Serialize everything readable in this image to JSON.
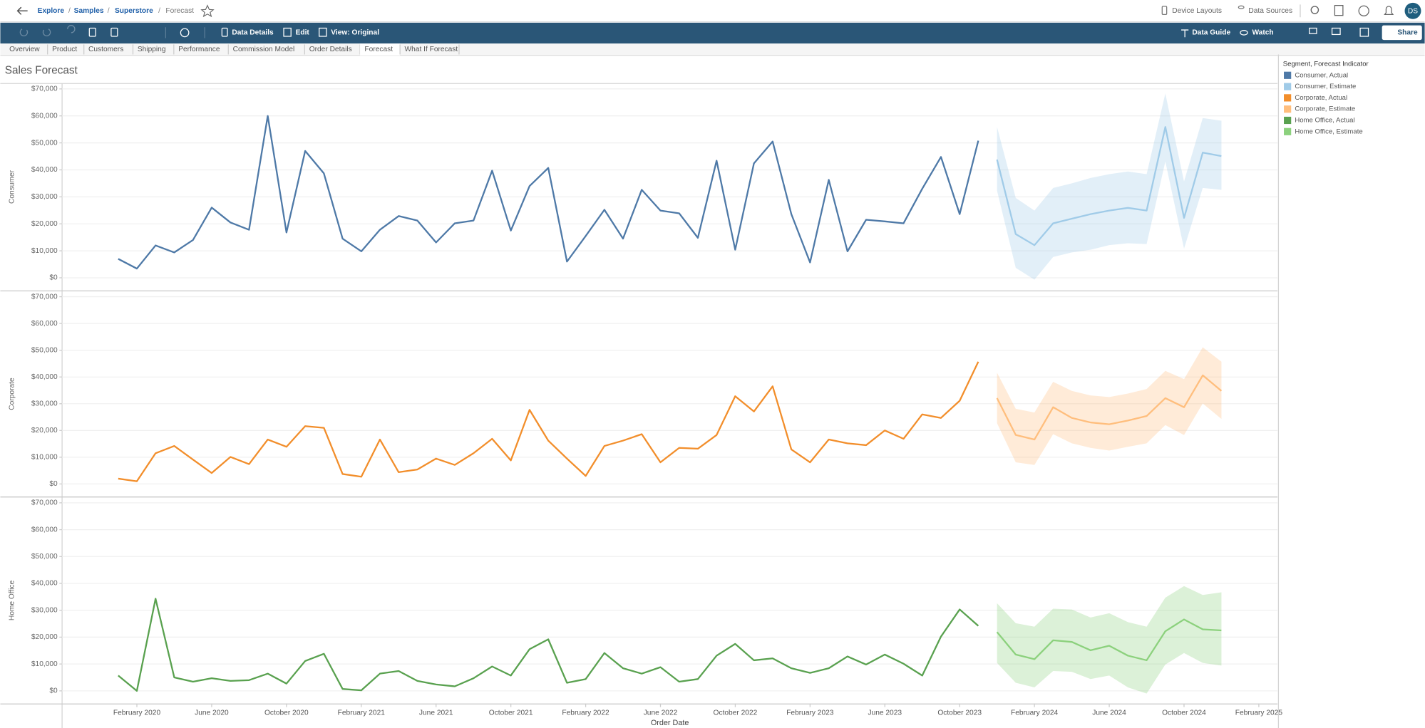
{
  "header": {
    "breadcrumb": [
      "Explore",
      "Samples",
      "Superstore",
      "Forecast"
    ],
    "actions": [
      "Device Layouts",
      "Data Sources"
    ],
    "avatar": "DS"
  },
  "toolbar": {
    "left": [
      "Data Details",
      "Edit",
      "View: Original"
    ],
    "right": [
      "Data Guide",
      "Watch",
      "Share"
    ]
  },
  "tabs": [
    "Overview",
    "Product",
    "Customers",
    "Shipping",
    "Performance",
    "Commission Model",
    "Order Details",
    "Forecast",
    "What If Forecast"
  ],
  "active_tab": "Forecast",
  "chart_data": {
    "type": "line",
    "title": "Sales Forecast",
    "x_label": "Order Date",
    "x": [
      "2020-01",
      "2020-02",
      "2020-03",
      "2020-04",
      "2020-05",
      "2020-06",
      "2020-07",
      "2020-08",
      "2020-09",
      "2020-10",
      "2020-11",
      "2020-12",
      "2021-01",
      "2021-02",
      "2021-03",
      "2021-04",
      "2021-05",
      "2021-06",
      "2021-07",
      "2021-08",
      "2021-09",
      "2021-10",
      "2021-11",
      "2021-12",
      "2022-01",
      "2022-02",
      "2022-03",
      "2022-04",
      "2022-05",
      "2022-06",
      "2022-07",
      "2022-08",
      "2022-09",
      "2022-10",
      "2022-11",
      "2022-12",
      "2023-01",
      "2023-02",
      "2023-03",
      "2023-04",
      "2023-05",
      "2023-06",
      "2023-07",
      "2023-08",
      "2023-09",
      "2023-10",
      "2023-11",
      "2023-12",
      "2024-01",
      "2024-02",
      "2024-03",
      "2024-04",
      "2024-05",
      "2024-06",
      "2024-07",
      "2024-08",
      "2024-09",
      "2024-10",
      "2024-11",
      "2024-12"
    ],
    "xlim": [
      "2019-10",
      "2025-03"
    ],
    "xticks": [
      {
        "value": "2020-02",
        "label": "February 2020"
      },
      {
        "value": "2020-06",
        "label": "June 2020"
      },
      {
        "value": "2020-10",
        "label": "October 2020"
      },
      {
        "value": "2021-02",
        "label": "February 2021"
      },
      {
        "value": "2021-06",
        "label": "June 2021"
      },
      {
        "value": "2021-10",
        "label": "October 2021"
      },
      {
        "value": "2022-02",
        "label": "February 2022"
      },
      {
        "value": "2022-06",
        "label": "June 2022"
      },
      {
        "value": "2022-10",
        "label": "October 2022"
      },
      {
        "value": "2023-02",
        "label": "February 2023"
      },
      {
        "value": "2023-06",
        "label": "June 2023"
      },
      {
        "value": "2023-10",
        "label": "October 2023"
      },
      {
        "value": "2024-02",
        "label": "February 2024"
      },
      {
        "value": "2024-06",
        "label": "June 2024"
      },
      {
        "value": "2024-10",
        "label": "October 2024"
      },
      {
        "value": "2025-02",
        "label": "February 2025"
      }
    ],
    "ylim": [
      -4700,
      72000
    ],
    "yticks": [
      {
        "value": 0,
        "label": "$0"
      },
      {
        "value": 10000,
        "label": "$10,000"
      },
      {
        "value": 20000,
        "label": "$20,000"
      },
      {
        "value": 30000,
        "label": "$30,000"
      },
      {
        "value": 40000,
        "label": "$40,000"
      },
      {
        "value": 50000,
        "label": "$50,000"
      },
      {
        "value": 60000,
        "label": "$60,000"
      },
      {
        "value": 70000,
        "label": "$70,000"
      }
    ],
    "grid": true,
    "legend": {
      "title": "Segment, Forecast Indicator",
      "position": "right"
    },
    "panels": [
      {
        "label": "Consumer",
        "series": [
          {
            "name": "Consumer, Actual",
            "color": "#4e79a7",
            "values": [
              7000,
              3400,
              12000,
              9400,
              14000,
              26000,
              20500,
              17800,
              60000,
              16800,
              47000,
              38700,
              14500,
              9800,
              17800,
              22900,
              21200,
              13100,
              20200,
              21200,
              39700,
              17500,
              34000,
              40700,
              6000,
              15500,
              25200,
              14500,
              32600,
              24900,
              23900,
              14800,
              43400,
              10400,
              42400,
              50500,
              23600,
              5700,
              36300,
              9800,
              21500,
              20900,
              20200,
              33000,
              44800,
              23600,
              50800,
              null,
              null,
              null,
              null,
              null,
              null,
              null,
              null,
              null,
              null,
              null,
              null,
              null
            ]
          },
          {
            "name": "Consumer, Estimate",
            "color": "#a0cbe8",
            "values": [
              null,
              null,
              null,
              null,
              null,
              null,
              null,
              null,
              null,
              null,
              null,
              null,
              null,
              null,
              null,
              null,
              null,
              null,
              null,
              null,
              null,
              null,
              null,
              null,
              null,
              null,
              null,
              null,
              null,
              null,
              null,
              null,
              null,
              null,
              null,
              null,
              null,
              null,
              null,
              null,
              null,
              null,
              null,
              null,
              null,
              null,
              null,
              43800,
              16200,
              12100,
              20200,
              21900,
              23600,
              24900,
              25900,
              24900,
              55900,
              22200,
              46400,
              45100
            ],
            "upper": [
              null,
              null,
              null,
              null,
              null,
              null,
              null,
              null,
              null,
              null,
              null,
              null,
              null,
              null,
              null,
              null,
              null,
              null,
              null,
              null,
              null,
              null,
              null,
              null,
              null,
              null,
              null,
              null,
              null,
              null,
              null,
              null,
              null,
              null,
              null,
              null,
              null,
              null,
              null,
              null,
              null,
              null,
              null,
              null,
              null,
              null,
              null,
              55900,
              29600,
              24900,
              33300,
              35000,
              37000,
              38400,
              39400,
              38400,
              68300,
              35700,
              59200,
              58200
            ],
            "lower": [
              null,
              null,
              null,
              null,
              null,
              null,
              null,
              null,
              null,
              null,
              null,
              null,
              null,
              null,
              null,
              null,
              null,
              null,
              null,
              null,
              null,
              null,
              null,
              null,
              null,
              null,
              null,
              null,
              null,
              null,
              null,
              null,
              null,
              null,
              null,
              null,
              null,
              null,
              null,
              null,
              null,
              null,
              null,
              null,
              null,
              null,
              null,
              32300,
              3700,
              -700,
              7700,
              9400,
              10400,
              12100,
              12800,
              12500,
              43100,
              10800,
              33300,
              32600
            ]
          }
        ]
      },
      {
        "label": "Corporate",
        "series": [
          {
            "name": "Corporate, Actual",
            "color": "#f28e2b",
            "values": [
              2000,
              1000,
              11500,
              14200,
              9100,
              4100,
              10100,
              7400,
              16600,
              13900,
              21600,
              21000,
              3700,
              2700,
              16600,
              4400,
              5400,
              9500,
              7100,
              11500,
              16900,
              8800,
              27700,
              16200,
              9500,
              3000,
              14200,
              16200,
              18600,
              8100,
              13500,
              13200,
              18300,
              32800,
              27100,
              36500,
              12900,
              8100,
              16600,
              15200,
              14500,
              20000,
              16900,
              26000,
              24700,
              31100,
              45700,
              null,
              null,
              null,
              null,
              null,
              null,
              null,
              null,
              null,
              null,
              null,
              null,
              null
            ]
          },
          {
            "name": "Corporate, Estimate",
            "color": "#ffbe7d",
            "values": [
              null,
              null,
              null,
              null,
              null,
              null,
              null,
              null,
              null,
              null,
              null,
              null,
              null,
              null,
              null,
              null,
              null,
              null,
              null,
              null,
              null,
              null,
              null,
              null,
              null,
              null,
              null,
              null,
              null,
              null,
              null,
              null,
              null,
              null,
              null,
              null,
              null,
              null,
              null,
              null,
              null,
              null,
              null,
              null,
              null,
              null,
              null,
              32100,
              18300,
              16600,
              28700,
              24700,
              23000,
              22300,
              23700,
              25400,
              32100,
              28700,
              40600,
              34800
            ],
            "upper": [
              null,
              null,
              null,
              null,
              null,
              null,
              null,
              null,
              null,
              null,
              null,
              null,
              null,
              null,
              null,
              null,
              null,
              null,
              null,
              null,
              null,
              null,
              null,
              null,
              null,
              null,
              null,
              null,
              null,
              null,
              null,
              null,
              null,
              null,
              null,
              null,
              null,
              null,
              null,
              null,
              null,
              null,
              null,
              null,
              null,
              null,
              null,
              41600,
              28100,
              26700,
              38200,
              34800,
              33100,
              32500,
              33800,
              35500,
              42300,
              39200,
              51100,
              45700
            ],
            "lower": [
              null,
              null,
              null,
              null,
              null,
              null,
              null,
              null,
              null,
              null,
              null,
              null,
              null,
              null,
              null,
              null,
              null,
              null,
              null,
              null,
              null,
              null,
              null,
              null,
              null,
              null,
              null,
              null,
              null,
              null,
              null,
              null,
              null,
              null,
              null,
              null,
              null,
              null,
              null,
              null,
              null,
              null,
              null,
              null,
              null,
              null,
              null,
              22700,
              8100,
              7100,
              18600,
              15200,
              13500,
              12500,
              13900,
              15200,
              22000,
              18300,
              30100,
              24300
            ]
          }
        ]
      },
      {
        "label": "Home Office",
        "series": [
          {
            "name": "Home Office, Actual",
            "color": "#59a14f",
            "values": [
              5700,
              0,
              34300,
              5000,
              3400,
              4700,
              3700,
              4000,
              6400,
              2700,
              11100,
              13800,
              700,
              200,
              6400,
              7400,
              3700,
              2400,
              1700,
              4700,
              9100,
              5700,
              15500,
              19200,
              3000,
              4400,
              14100,
              8400,
              6400,
              8800,
              3400,
              4400,
              13100,
              17500,
              11400,
              12100,
              8400,
              6700,
              8400,
              12800,
              9800,
              13500,
              10100,
              5700,
              20200,
              30300,
              24200,
              null,
              null,
              null,
              null,
              null,
              null,
              null,
              null,
              null,
              null,
              null,
              null,
              null
            ]
          },
          {
            "name": "Home Office, Estimate",
            "color": "#8cd17d",
            "values": [
              null,
              null,
              null,
              null,
              null,
              null,
              null,
              null,
              null,
              null,
              null,
              null,
              null,
              null,
              null,
              null,
              null,
              null,
              null,
              null,
              null,
              null,
              null,
              null,
              null,
              null,
              null,
              null,
              null,
              null,
              null,
              null,
              null,
              null,
              null,
              null,
              null,
              null,
              null,
              null,
              null,
              null,
              null,
              null,
              null,
              null,
              null,
              21900,
              13500,
              11800,
              18800,
              18200,
              15100,
              16800,
              13100,
              11400,
              22200,
              26600,
              22900,
              22500
            ],
            "upper": [
              null,
              null,
              null,
              null,
              null,
              null,
              null,
              null,
              null,
              null,
              null,
              null,
              null,
              null,
              null,
              null,
              null,
              null,
              null,
              null,
              null,
              null,
              null,
              null,
              null,
              null,
              null,
              null,
              null,
              null,
              null,
              null,
              null,
              null,
              null,
              null,
              null,
              null,
              null,
              null,
              null,
              null,
              null,
              null,
              null,
              null,
              null,
              32600,
              25200,
              23900,
              30600,
              30300,
              27300,
              28900,
              25600,
              23900,
              34700,
              39000,
              35700,
              36700
            ],
            "lower": [
              null,
              null,
              null,
              null,
              null,
              null,
              null,
              null,
              null,
              null,
              null,
              null,
              null,
              null,
              null,
              null,
              null,
              null,
              null,
              null,
              null,
              null,
              null,
              null,
              null,
              null,
              null,
              null,
              null,
              null,
              null,
              null,
              null,
              null,
              null,
              null,
              null,
              null,
              null,
              null,
              null,
              null,
              null,
              null,
              null,
              null,
              null,
              10400,
              3000,
              1300,
              7400,
              7100,
              4400,
              5700,
              1300,
              -1000,
              9800,
              14100,
              10400,
              9400
            ]
          }
        ]
      }
    ]
  }
}
